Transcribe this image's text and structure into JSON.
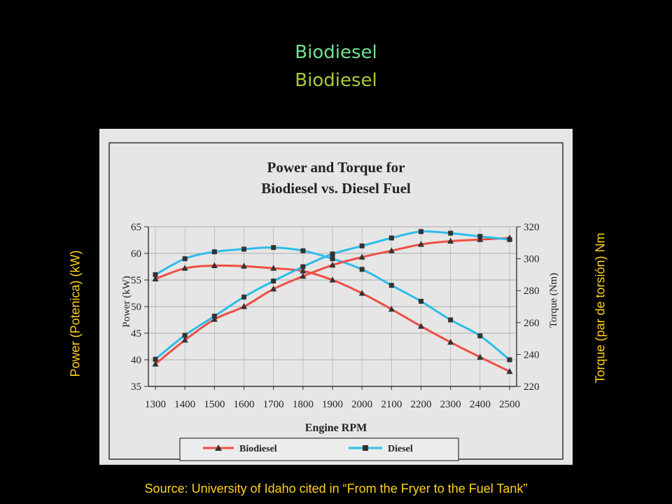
{
  "slide": {
    "title": "Biodiesel",
    "subtitle": "Biodiesel",
    "left_axis_label": "Power (Potenica) (kW)",
    "right_axis_label": "Torque (par de torsión) Nm",
    "source": "Source: University of Idaho cited in “From the Fryer to the Fuel Tank”"
  },
  "colors": {
    "background": "#000000",
    "title": "#6fe38f",
    "subtitle": "#a8c83a",
    "labels": "#ffd21f",
    "biodiesel": "#ef4e45",
    "diesel": "#2dbde8",
    "markers": "#333333",
    "scan_background": "#e6e6e6"
  },
  "chart_data": {
    "type": "line",
    "title_line1": "Power and Torque for",
    "title_line2": "Biodiesel vs. Diesel Fuel",
    "xlabel": "Engine RPM",
    "ylabel": "Power (kW)",
    "y2label": "Torque (Nm)",
    "x": [
      1300,
      1400,
      1500,
      1600,
      1700,
      1800,
      1900,
      2000,
      2100,
      2200,
      2300,
      2400,
      2500
    ],
    "ylim": [
      35,
      65
    ],
    "yticks": [
      35,
      40,
      45,
      50,
      55,
      60,
      65
    ],
    "y2lim": [
      220,
      320
    ],
    "y2ticks": [
      220,
      240,
      260,
      280,
      300,
      320
    ],
    "legend": [
      "Biodiesel",
      "Diesel"
    ],
    "series": [
      {
        "name": "Biodiesel",
        "quantity": "power",
        "axis": "left",
        "marker": "triangle",
        "values": [
          55.2,
          57.2,
          57.7,
          57.6,
          57.2,
          56.7,
          55.0,
          52.5,
          49.5,
          46.3,
          43.3,
          40.5,
          37.8
        ]
      },
      {
        "name": "Diesel",
        "quantity": "power",
        "axis": "left",
        "marker": "square",
        "values": [
          56.0,
          59.0,
          60.3,
          60.8,
          61.1,
          60.5,
          59.0,
          57.0,
          54.0,
          51.0,
          47.5,
          44.5,
          40.0
        ]
      },
      {
        "name": "Biodiesel",
        "quantity": "torque",
        "axis": "right",
        "marker": "triangle",
        "values": [
          234,
          249,
          262,
          270,
          281,
          289,
          296,
          301,
          305,
          309,
          311,
          312,
          313
        ]
      },
      {
        "name": "Diesel",
        "quantity": "torque",
        "axis": "right",
        "marker": "square",
        "values": [
          237,
          252,
          264,
          276,
          286,
          295,
          303,
          308,
          313,
          317,
          316,
          314,
          312
        ]
      }
    ]
  }
}
